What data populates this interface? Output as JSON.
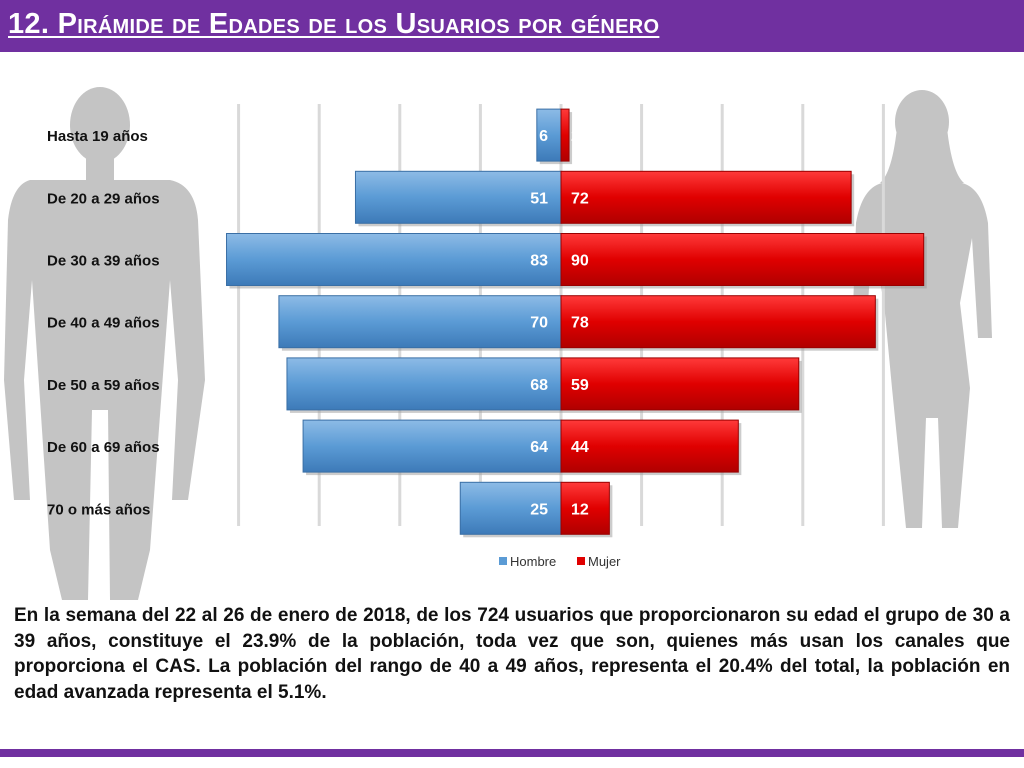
{
  "slide": {
    "title": "12. Pirámide de Edades de los Usuarios por género",
    "description": "En la semana del 22 al 26 de enero de 2018, de los 724 usuarios  que proporcionaron su edad el grupo de 30 a 39 años, constituye el 23.9% de la población, toda vez que son, quienes más usan los canales que proporciona el CAS. La población del rango de 40 a 49 años, representa el 20.4% del total, la población en edad avanzada representa el 5.1%."
  },
  "colors": {
    "brand_purple": "#7030a0",
    "hombre": "#5b9bd5",
    "mujer": "#e00000",
    "silhouette": "#c4c4c4"
  },
  "icons": {
    "left": "man-silhouette-icon",
    "right": "woman-silhouette-icon"
  },
  "chart_data": {
    "type": "bar",
    "orientation": "horizontal-population-pyramid",
    "categories": [
      "Hasta 19 años",
      "De 20 a 29 años",
      "De 30 a 39 años",
      "De 40 a 49 años",
      "De 50 a 59 años",
      "De 60 a 69 años",
      "70 o más años"
    ],
    "series": [
      {
        "name": "Hombre",
        "values": [
          6,
          51,
          83,
          70,
          68,
          64,
          25
        ]
      },
      {
        "name": "Mujer",
        "values": [
          2,
          72,
          90,
          78,
          59,
          44,
          12
        ]
      }
    ],
    "data_labels": true,
    "grid": true,
    "legend": "bottom"
  }
}
